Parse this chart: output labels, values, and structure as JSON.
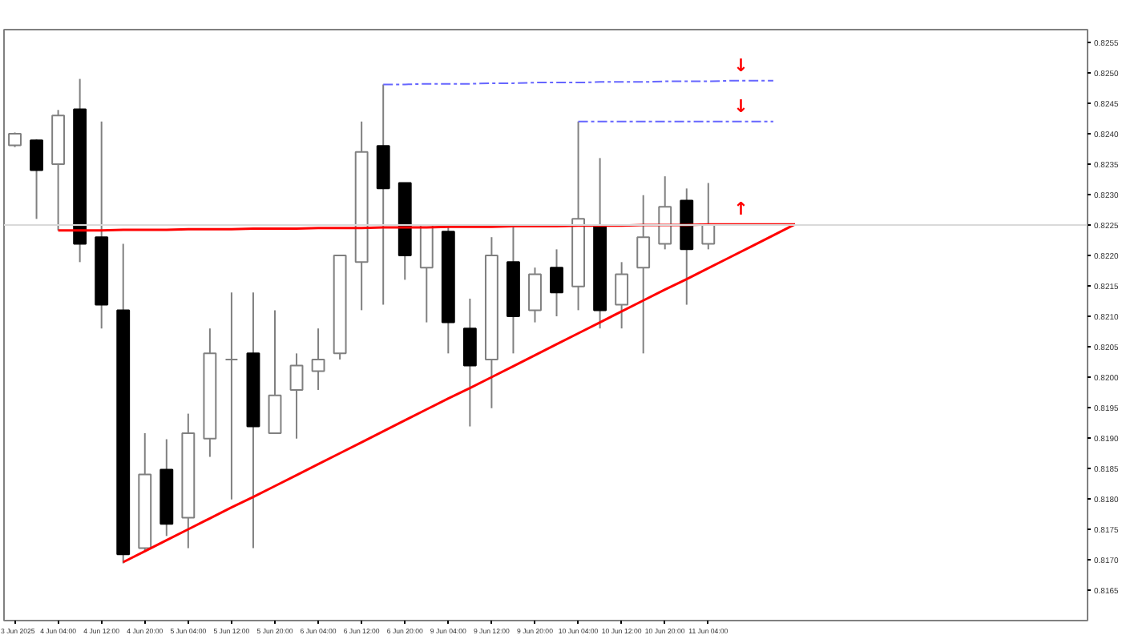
{
  "chart_data": {
    "type": "candlestick",
    "categories": [
      "3 Jun 2025",
      null,
      "4 Jun 04:00",
      null,
      "4 Jun 12:00",
      null,
      "4 Jun 20:00",
      null,
      "5 Jun 04:00",
      null,
      "5 Jun 12:00",
      null,
      "5 Jun 20:00",
      null,
      "6 Jun 04:00",
      null,
      "6 Jun 12:00",
      null,
      "6 Jun 20:00",
      null,
      "9 Jun 04:00",
      null,
      "9 Jun 12:00",
      null,
      "9 Jun 20:00",
      null,
      "10 Jun 04:00",
      null,
      "10 Jun 12:00",
      null,
      "10 Jun 20:00",
      null,
      "11 Jun 04:00",
      null,
      null,
      null,
      null,
      null,
      null,
      null,
      null,
      null,
      null,
      null,
      null,
      null,
      null,
      null,
      null,
      null
    ],
    "ohlc": [
      [
        0.82381,
        0.82402,
        0.82378,
        0.824
      ],
      [
        0.82389,
        0.82391,
        0.8226,
        0.8234
      ],
      [
        0.8235,
        0.82439,
        0.82241,
        0.8243
      ],
      [
        0.8244,
        0.8249,
        0.82189,
        0.82219
      ],
      [
        0.8223,
        0.8242,
        0.8208,
        0.82119
      ],
      [
        0.8211,
        0.82219,
        0.81694,
        0.81709
      ],
      [
        0.81719,
        0.81908,
        0.81713,
        0.8184
      ],
      [
        0.81848,
        0.81898,
        0.81739,
        0.81759
      ],
      [
        0.81769,
        0.8194,
        0.81719,
        0.81908
      ],
      [
        0.81899,
        0.8208,
        0.81869,
        0.82039
      ],
      [
        0.82029,
        0.82139,
        0.81799,
        0.82029
      ],
      [
        0.82039,
        0.82139,
        0.81719,
        0.81919
      ],
      [
        0.81908,
        0.8211,
        0.81908,
        0.8197
      ],
      [
        0.81979,
        0.82039,
        0.81899,
        0.82019
      ],
      [
        0.8201,
        0.8208,
        0.81979,
        0.82029
      ],
      [
        0.82039,
        0.822,
        0.82029,
        0.822
      ],
      [
        0.82189,
        0.8242,
        0.8211,
        0.8237
      ],
      [
        0.8238,
        0.82481,
        0.82119,
        0.8231
      ],
      [
        0.82319,
        0.82319,
        0.8216,
        0.822
      ],
      [
        0.8218,
        0.8225,
        0.8209,
        0.8225
      ],
      [
        0.82239,
        0.8225,
        0.82039,
        0.8209
      ],
      [
        0.8208,
        0.82129,
        0.81919,
        0.82019
      ],
      [
        0.82029,
        0.8223,
        0.81949,
        0.822
      ],
      [
        0.82189,
        0.8225,
        0.82039,
        0.821
      ],
      [
        0.8211,
        0.8218,
        0.8209,
        0.82169
      ],
      [
        0.8218,
        0.8221,
        0.821,
        0.82139
      ],
      [
        0.82149,
        0.8242,
        0.8211,
        0.8226
      ],
      [
        0.82248,
        0.8236,
        0.8208,
        0.8211
      ],
      [
        0.82119,
        0.82189,
        0.8208,
        0.82169
      ],
      [
        0.8218,
        0.82299,
        0.82039,
        0.8223
      ],
      [
        0.82219,
        0.8233,
        0.8221,
        0.8228
      ],
      [
        0.8229,
        0.8231,
        0.82119,
        0.8221
      ],
      [
        0.82219,
        0.82319,
        0.8221,
        0.8225
      ],
      null,
      null,
      null,
      null,
      null,
      null,
      null,
      null,
      null,
      null,
      null,
      null,
      null,
      null,
      null,
      null,
      null
    ],
    "colors": [
      "#ffffff",
      "#000000",
      "#ffffff",
      "#000000",
      "#000000",
      "#000000",
      "#ffffff",
      "#000000",
      "#ffffff",
      "#ffffff",
      "#808080",
      "#000000",
      "#ffffff",
      "#ffffff",
      "#ffffff",
      "#ffffff",
      "#ffffff",
      "#000000",
      "#000000",
      "#ffffff",
      "#000000",
      "#000000",
      "#ffffff",
      "#000000",
      "#ffffff",
      "#000000",
      "#ffffff",
      "#000000",
      "#ffffff",
      "#ffffff",
      "#ffffff",
      "#000000",
      "#ffffff",
      null,
      null,
      null,
      null,
      null,
      null,
      null,
      null,
      null,
      null,
      null,
      null,
      null,
      null,
      null,
      null,
      null
    ],
    "series": [
      {
        "type": "line",
        "color": "#ff0000",
        "values": [
          null,
          null,
          0.82241,
          0.82241,
          0.82241,
          0.82242,
          0.82242,
          0.82242,
          0.82243,
          0.82243,
          0.82243,
          0.82244,
          0.82244,
          0.82244,
          0.82245,
          0.82245,
          0.82245,
          0.82246,
          0.82246,
          0.82246,
          0.82247,
          0.82247,
          0.82247,
          0.82248,
          0.82248,
          0.82248,
          0.82249,
          0.82249,
          0.82249,
          0.8225,
          0.8225,
          0.8225,
          0.82251,
          0.82251,
          0.82251,
          0.82251,
          0.82251,
          null,
          null,
          null,
          null,
          null,
          null,
          null,
          null,
          null,
          null,
          null,
          null,
          null
        ]
      },
      {
        "type": "line",
        "color": "#ff0000",
        "values": [
          null,
          null,
          null,
          null,
          null,
          0.81696,
          0.81714,
          0.81732,
          0.8175,
          0.81768,
          0.81786,
          0.81803,
          0.81821,
          0.81839,
          0.81857,
          0.81875,
          0.81893,
          0.81911,
          0.81929,
          0.81947,
          0.81965,
          0.81982,
          0.82,
          0.82018,
          0.82036,
          0.82054,
          0.82072,
          0.8209,
          0.82108,
          0.82126,
          0.82144,
          0.82161,
          0.82179,
          0.82197,
          0.82215,
          0.82233,
          0.82251,
          null,
          null,
          null,
          null,
          null,
          null,
          null,
          null,
          null,
          null,
          null,
          null,
          null
        ]
      },
      {
        "type": "line",
        "color": "#6666ff",
        "line_style": "dashed",
        "values": [
          null,
          null,
          null,
          null,
          null,
          null,
          null,
          null,
          null,
          null,
          null,
          null,
          null,
          null,
          null,
          null,
          null,
          0.82481,
          0.82481,
          0.82482,
          0.82482,
          0.82482,
          0.82483,
          0.82483,
          0.82484,
          0.82484,
          0.82484,
          0.82485,
          0.82485,
          0.82485,
          0.82486,
          0.82486,
          0.82486,
          0.82487,
          0.82487,
          0.82487,
          null,
          null,
          null,
          null,
          null,
          null,
          null,
          null,
          null,
          null,
          null,
          null,
          null,
          null
        ]
      },
      {
        "type": "line",
        "color": "#6666ff",
        "line_style": "dashed",
        "values": [
          null,
          null,
          null,
          null,
          null,
          null,
          null,
          null,
          null,
          null,
          null,
          null,
          null,
          null,
          null,
          null,
          null,
          null,
          null,
          null,
          null,
          null,
          null,
          null,
          null,
          null,
          0.8242,
          0.8242,
          0.8242,
          0.8242,
          0.8242,
          0.8242,
          0.8242,
          0.8242,
          0.8242,
          0.8242,
          null,
          null,
          null,
          null,
          null,
          null,
          null,
          null,
          null,
          null,
          null,
          null,
          null,
          null
        ]
      }
    ],
    "annotations": [
      {
        "text": "↓",
        "y": 0.82487
      },
      {
        "text": "↓",
        "y": 0.8242
      },
      {
        "text": "↑",
        "y": 0.82251
      }
    ],
    "ref_lines": [
      {
        "axis": "y",
        "value": 0.8225,
        "color": "#d9d9d9"
      }
    ],
    "ylim": [
      0.816,
      0.82571
    ],
    "yticks": [
      {
        "value": 0.8165,
        "label": "0.8165"
      },
      {
        "value": 0.817,
        "label": "0.8170"
      },
      {
        "value": 0.8175,
        "label": "0.8175"
      },
      {
        "value": 0.818,
        "label": "0.8180"
      },
      {
        "value": 0.8185,
        "label": "0.8185"
      },
      {
        "value": 0.819,
        "label": "0.8190"
      },
      {
        "value": 0.8195,
        "label": "0.8195"
      },
      {
        "value": 0.82,
        "label": "0.8200"
      },
      {
        "value": 0.8205,
        "label": "0.8205"
      },
      {
        "value": 0.821,
        "label": "0.8210"
      },
      {
        "value": 0.8215,
        "label": "0.8215"
      },
      {
        "value": 0.822,
        "label": "0.8220"
      },
      {
        "value": 0.8225,
        "label": "0.8225"
      },
      {
        "value": 0.823,
        "label": "0.8230"
      },
      {
        "value": 0.8235,
        "label": "0.8235"
      },
      {
        "value": 0.824,
        "label": "0.8240"
      },
      {
        "value": 0.8245,
        "label": "0.8245"
      },
      {
        "value": 0.825,
        "label": "0.8250"
      },
      {
        "value": 0.8255,
        "label": "0.8255"
      }
    ],
    "grid": false,
    "marker": "none"
  }
}
